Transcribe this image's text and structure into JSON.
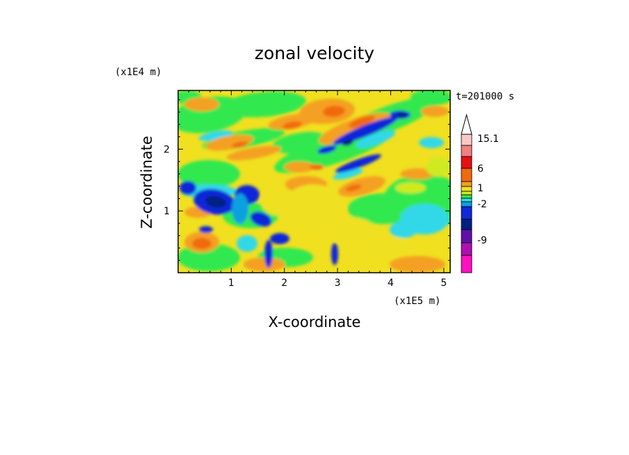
{
  "chart_data": {
    "type": "heatmap",
    "title": "zonal velocity",
    "xlabel": "X-coordinate",
    "ylabel": "Z-coordinate",
    "x_scale_label": "(x1E5 m)",
    "y_scale_label": "(x1E4 m)",
    "time_label": "t=201000 s",
    "x_ticks": [
      "1",
      "2",
      "3",
      "4",
      "5"
    ],
    "y_ticks": [
      "1",
      "2"
    ],
    "xlim": [
      0,
      5.12
    ],
    "ylim": [
      0,
      2.95
    ],
    "colorbar": {
      "labels": [
        "15.1",
        "6",
        "1",
        "-2",
        "-9"
      ],
      "colors_top_to_bottom": [
        "#f8c8c8",
        "#f08080",
        "#e81010",
        "#f06a10",
        "#f4a020",
        "#f0e020",
        "#d0ea20",
        "#30e850",
        "#30d8e8",
        "#0aa0e0",
        "#1028d8",
        "#002080",
        "#6010a8",
        "#b010b0",
        "#ff10c0"
      ]
    },
    "field_summary": "Layered alternating positive (orange/yellow) and negative (blue) zonal velocity bands tilted upward to the right; strong negative core near x=1E5 m, z=1.2E4 m; positive background in the lower right; topography spikes near x=1.7 and x=2.9 (x1E5 m)."
  }
}
